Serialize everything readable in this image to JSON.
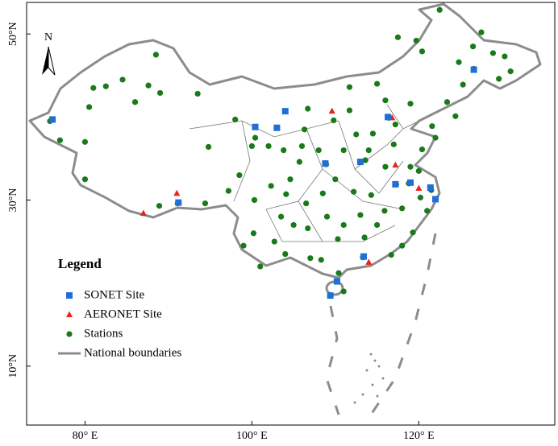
{
  "map": {
    "north_label": "N",
    "xaxis": {
      "lim": [
        73,
        136.3
      ],
      "ticks": [
        {
          "value": 80,
          "label": "80° E"
        },
        {
          "value": 100,
          "label": "100° E"
        },
        {
          "value": 120,
          "label": "120° E"
        }
      ]
    },
    "yaxis": {
      "lim": [
        2.9,
        53.8
      ],
      "ticks": [
        {
          "value": 50,
          "label": "50°N"
        },
        {
          "value": 30,
          "label": "30°N"
        },
        {
          "value": 10,
          "label": "10°N"
        }
      ]
    },
    "legend": {
      "title": "Legend"
    },
    "boundary": {
      "name": "National boundaries",
      "color": "#8c8c8c"
    },
    "layers": [
      {
        "name": "SONET Site",
        "color": "#1f6fd6",
        "marker": "square",
        "points": [
          [
            76.1,
            39.7
          ],
          [
            104.0,
            40.7
          ],
          [
            100.4,
            38.8
          ],
          [
            103.0,
            38.7
          ],
          [
            108.8,
            34.4
          ],
          [
            113.0,
            34.6
          ],
          [
            116.3,
            40.0
          ],
          [
            126.6,
            45.7
          ],
          [
            91.2,
            29.7
          ],
          [
            117.2,
            31.9
          ],
          [
            119.0,
            32.1
          ],
          [
            121.4,
            31.5
          ],
          [
            122.0,
            30.1
          ],
          [
            113.4,
            23.2
          ],
          [
            110.2,
            20.2
          ],
          [
            109.4,
            18.5
          ]
        ]
      },
      {
        "name": "AERONET Site",
        "color": "#e8231c",
        "marker": "triangle",
        "points": [
          [
            109.6,
            40.7
          ],
          [
            91.0,
            30.8
          ],
          [
            87.0,
            28.4
          ],
          [
            117.2,
            34.2
          ],
          [
            120.0,
            31.4
          ],
          [
            114.0,
            22.5
          ],
          [
            116.8,
            39.9
          ]
        ]
      },
      {
        "name": "Stations",
        "color": "#1a7a1a",
        "marker": "circle",
        "points": [
          [
            75.8,
            39.5
          ],
          [
            80.5,
            41.2
          ],
          [
            82.5,
            43.7
          ],
          [
            84.5,
            44.5
          ],
          [
            86,
            41.8
          ],
          [
            87.6,
            43.8
          ],
          [
            89,
            42.9
          ],
          [
            93.5,
            42.8
          ],
          [
            88.5,
            47.5
          ],
          [
            81,
            43.5
          ],
          [
            77,
            37.2
          ],
          [
            80,
            37
          ],
          [
            80,
            32.5
          ],
          [
            91.1,
            29.6
          ],
          [
            88.9,
            29.3
          ],
          [
            94.4,
            29.6
          ],
          [
            97.2,
            31.1
          ],
          [
            100,
            36.5
          ],
          [
            102,
            36.5
          ],
          [
            94.8,
            36.4
          ],
          [
            98,
            39.7
          ],
          [
            100.4,
            37.5
          ],
          [
            103.8,
            36
          ],
          [
            106.3,
            38.5
          ],
          [
            111.7,
            40.8
          ],
          [
            109.8,
            39.6
          ],
          [
            105.7,
            34.6
          ],
          [
            108.9,
            34.3
          ],
          [
            112.5,
            37.9
          ],
          [
            113.6,
            34.8
          ],
          [
            117.2,
            39.1
          ],
          [
            116.4,
            39.9
          ],
          [
            114.5,
            38
          ],
          [
            117,
            36.7
          ],
          [
            120.4,
            36.1
          ],
          [
            122,
            37.5
          ],
          [
            118.8,
            32
          ],
          [
            120.2,
            30.3
          ],
          [
            121.5,
            31.2
          ],
          [
            117.3,
            31.9
          ],
          [
            114.3,
            30.6
          ],
          [
            113,
            28.2
          ],
          [
            115.9,
            28.7
          ],
          [
            119.3,
            26.1
          ],
          [
            118,
            24.5
          ],
          [
            113.3,
            23.1
          ],
          [
            110.3,
            25.3
          ],
          [
            108.3,
            22.8
          ],
          [
            106.7,
            26.6
          ],
          [
            102.7,
            25
          ],
          [
            104.1,
            30.7
          ],
          [
            106.5,
            29.6
          ],
          [
            100.2,
            26
          ],
          [
            99,
            24.5
          ],
          [
            101,
            22
          ],
          [
            104,
            23.5
          ],
          [
            107,
            23
          ],
          [
            110.4,
            21.2
          ],
          [
            111,
            19
          ],
          [
            113.5,
            25.5
          ],
          [
            116.7,
            23.4
          ],
          [
            121,
            28.7
          ],
          [
            126.6,
            45.8
          ],
          [
            125.3,
            43.9
          ],
          [
            123.4,
            41.8
          ],
          [
            121.6,
            38.9
          ],
          [
            124.8,
            46.6
          ],
          [
            129.6,
            44.6
          ],
          [
            130.3,
            47.3
          ],
          [
            127.5,
            50.2
          ],
          [
            122.5,
            52.9
          ],
          [
            119.7,
            49.2
          ],
          [
            117.5,
            49.6
          ],
          [
            120.4,
            47.9
          ],
          [
            115,
            44
          ],
          [
            111.7,
            43.6
          ],
          [
            106.7,
            41
          ],
          [
            116,
            42
          ],
          [
            124.4,
            40.1
          ],
          [
            119,
            41.6
          ],
          [
            126.5,
            48.5
          ],
          [
            128.9,
            47.7
          ],
          [
            131,
            45.5
          ],
          [
            108.5,
            30.8
          ],
          [
            110,
            32.5
          ],
          [
            112.2,
            31
          ],
          [
            105,
            27
          ],
          [
            103.5,
            28
          ],
          [
            98.5,
            33
          ],
          [
            102.3,
            31.7
          ],
          [
            100.3,
            30
          ],
          [
            104.6,
            32.5
          ],
          [
            114,
            36
          ],
          [
            116,
            34
          ],
          [
            119,
            34
          ],
          [
            120,
            33.5
          ],
          [
            111,
            36
          ],
          [
            108,
            36
          ],
          [
            106,
            36.5
          ],
          [
            115,
            27
          ],
          [
            118,
            29
          ],
          [
            111,
            27
          ],
          [
            109,
            28
          ]
        ]
      }
    ]
  }
}
